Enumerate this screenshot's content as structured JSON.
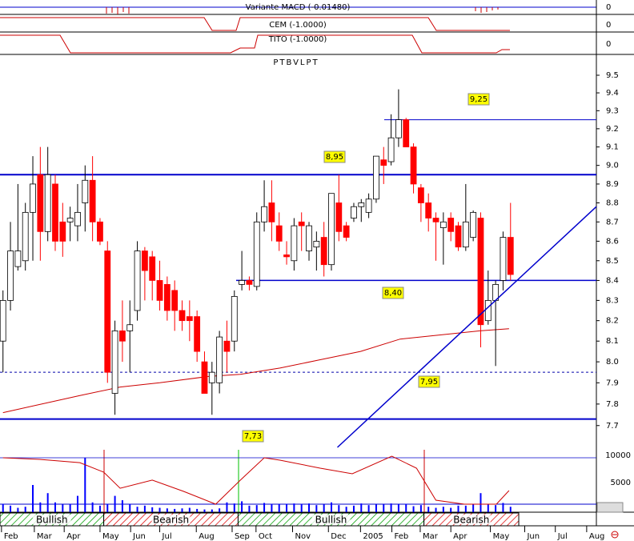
{
  "top_panels": [
    {
      "label": "Variante MACD (-0.01480)",
      "axis_label": "0"
    },
    {
      "label": "CEM (-1.0000)",
      "axis_label": "0"
    },
    {
      "label": "TITO (-1.0000)",
      "axis_label": "0"
    }
  ],
  "chart_data": {
    "type": "candlestick",
    "title": "PTBVLPT",
    "x": [
      0,
      1,
      2,
      3,
      4,
      5,
      6,
      7,
      8,
      9,
      10,
      11,
      12,
      13,
      14,
      15,
      16,
      17,
      18,
      19,
      20,
      21,
      22,
      23,
      24,
      25,
      26,
      27,
      28,
      29,
      30,
      31,
      32,
      33,
      34,
      35,
      36,
      37,
      38,
      39,
      40,
      41,
      42,
      43,
      44,
      45,
      46,
      47,
      48,
      49,
      50,
      51,
      52,
      53,
      54,
      55,
      56,
      57,
      58,
      59,
      60,
      61,
      62,
      63,
      64,
      65,
      66,
      67,
      68
    ],
    "open": [
      8.1,
      8.3,
      8.47,
      8.5,
      8.75,
      8.95,
      8.65,
      8.9,
      8.7,
      8.7,
      8.68,
      8.8,
      8.92,
      8.7,
      8.55,
      7.85,
      8.15,
      8.15,
      8.25,
      8.55,
      8.52,
      8.4,
      8.38,
      8.35,
      8.25,
      8.22,
      8.22,
      8.0,
      7.9,
      7.9,
      8.1,
      8.1,
      8.38,
      8.4,
      8.37,
      8.7,
      8.8,
      8.68,
      8.53,
      8.5,
      8.7,
      8.55,
      8.57,
      8.62,
      8.48,
      8.8,
      8.68,
      8.72,
      8.78,
      8.75,
      8.82,
      9.03,
      9.02,
      9.15,
      9.25,
      9.1,
      8.88,
      8.8,
      8.72,
      8.67,
      8.72,
      8.68,
      8.57,
      8.62,
      8.72,
      8.2,
      8.3,
      8.4,
      8.62
    ],
    "high": [
      8.35,
      8.7,
      8.9,
      8.8,
      9.05,
      9.1,
      9.1,
      8.95,
      8.8,
      8.78,
      8.9,
      9.0,
      9.05,
      8.72,
      8.6,
      8.2,
      8.3,
      8.3,
      8.6,
      8.57,
      8.55,
      8.5,
      8.42,
      8.4,
      8.3,
      8.3,
      8.25,
      8.05,
      8.0,
      8.15,
      8.2,
      8.35,
      8.55,
      8.42,
      8.75,
      8.92,
      8.92,
      8.75,
      8.6,
      8.72,
      8.75,
      8.7,
      8.65,
      8.7,
      8.85,
      8.95,
      8.7,
      8.8,
      8.82,
      8.85,
      9.05,
      9.1,
      9.28,
      9.42,
      9.26,
      9.12,
      8.9,
      8.85,
      8.75,
      8.75,
      8.75,
      8.7,
      8.9,
      8.76,
      8.75,
      8.45,
      8.4,
      8.65,
      8.8
    ],
    "low": [
      7.95,
      8.25,
      8.45,
      8.45,
      8.5,
      8.5,
      8.6,
      8.55,
      8.52,
      8.6,
      8.6,
      8.65,
      8.6,
      8.58,
      7.9,
      7.75,
      8.0,
      7.95,
      8.2,
      8.3,
      8.3,
      8.25,
      8.2,
      8.15,
      8.15,
      8.1,
      8.0,
      7.85,
      7.75,
      7.85,
      7.95,
      8.05,
      8.35,
      8.35,
      8.35,
      8.65,
      8.6,
      8.55,
      8.48,
      8.45,
      8.55,
      8.5,
      8.45,
      8.42,
      8.45,
      8.6,
      8.6,
      8.7,
      8.7,
      8.72,
      8.8,
      8.9,
      9.0,
      9.1,
      9.1,
      8.85,
      8.7,
      8.65,
      8.5,
      8.48,
      8.6,
      8.55,
      8.55,
      8.6,
      8.07,
      8.18,
      7.98,
      8.35,
      8.4
    ],
    "close": [
      8.3,
      8.55,
      8.55,
      8.75,
      8.9,
      8.65,
      8.95,
      8.6,
      8.6,
      8.72,
      8.75,
      8.92,
      8.7,
      8.6,
      7.95,
      8.15,
      8.1,
      8.18,
      8.55,
      8.45,
      8.4,
      8.3,
      8.25,
      8.25,
      8.2,
      8.2,
      8.05,
      7.85,
      7.95,
      8.12,
      8.05,
      8.32,
      8.4,
      8.38,
      8.7,
      8.78,
      8.7,
      8.6,
      8.52,
      8.68,
      8.68,
      8.68,
      8.6,
      8.48,
      8.85,
      8.65,
      8.62,
      8.78,
      8.8,
      8.82,
      9.05,
      9.0,
      9.15,
      9.25,
      9.1,
      8.9,
      8.8,
      8.72,
      8.7,
      8.7,
      8.65,
      8.57,
      8.7,
      8.75,
      8.18,
      8.3,
      8.38,
      8.62,
      8.43
    ],
    "up_color": "#ffffff",
    "down_color": "#ff0000",
    "log_scale": true,
    "ylim": [
      7.6,
      9.61
    ],
    "yticks": [
      7.7,
      7.8,
      7.9,
      {
        "value": 8,
        "label": "8.0"
      },
      8.1,
      8.2,
      8.3,
      8.4,
      8.5,
      8.6,
      8.7,
      8.8,
      8.9,
      {
        "value": 9,
        "label": "9.0"
      },
      9.1,
      9.2,
      9.3,
      9.4,
      9.5
    ],
    "xlim": [
      -0.4,
      79.5
    ],
    "xticks": [
      {
        "value": -0.2,
        "label": "Feb"
      },
      {
        "value": 4.2,
        "label": "Mar"
      },
      {
        "value": 8.2,
        "label": "Apr"
      },
      {
        "value": 13.0,
        "label": "May"
      },
      {
        "value": 17.1,
        "label": "Jun"
      },
      {
        "value": 21.0,
        "label": "Jul"
      },
      {
        "value": 25.9,
        "label": "Aug"
      },
      {
        "value": 30.7,
        "label": "Sep"
      },
      {
        "value": 33.9,
        "label": "Oct"
      },
      {
        "value": 38.8,
        "label": "Nov"
      },
      {
        "value": 43.6,
        "label": "Dec"
      },
      {
        "value": 47.9,
        "label": "2005"
      },
      {
        "value": 52.1,
        "label": "Feb"
      },
      {
        "value": 55.9,
        "label": "Mar"
      },
      {
        "value": 60.0,
        "label": "Apr"
      },
      {
        "value": 65.3,
        "label": "May"
      },
      {
        "value": 69.9,
        "label": "Jun"
      },
      {
        "value": 74.0,
        "label": "Jul"
      },
      {
        "value": 78.2,
        "label": "Aug"
      }
    ],
    "moving_average": {
      "color": "#cc0000",
      "x": [
        0,
        10.3,
        15.7,
        21.0,
        27.5,
        31.8,
        37.1,
        42.5,
        47.9,
        53.2,
        58.6,
        63.9,
        67.8
      ],
      "values": [
        7.76,
        7.84,
        7.88,
        7.9,
        7.93,
        7.94,
        7.97,
        8.01,
        8.05,
        8.11,
        8.13,
        8.15,
        8.16
      ]
    },
    "levels": [
      {
        "value": 8.95,
        "label": "8,95"
      },
      {
        "value": 9.25,
        "label": "9,25"
      },
      {
        "value": 8.4,
        "label": "8,40"
      },
      {
        "value": 7.95,
        "label": "7,95"
      },
      {
        "value": 7.73,
        "label": "7,73"
      }
    ],
    "level_color": "#0000cc",
    "trendline": {
      "color": "#0000cc",
      "x": [
        44.8,
        79.5
      ],
      "values": [
        7.6,
        8.78
      ]
    },
    "volume": {
      "color": "#0000ff",
      "values": [
        1500,
        1200,
        800,
        1000,
        5000,
        1800,
        3500,
        1800,
        1400,
        1500,
        3000,
        10000,
        1800,
        1200,
        1500,
        3000,
        2200,
        1500,
        1000,
        1200,
        900,
        800,
        700,
        600,
        700,
        800,
        600,
        500,
        500,
        700,
        1800,
        1600,
        2000,
        1200,
        1300,
        1700,
        1500,
        1500,
        1500,
        1600,
        1500,
        1600,
        1300,
        1400,
        1800,
        1300,
        1000,
        1200,
        1600,
        1300,
        1400,
        1400,
        1600,
        1500,
        1500,
        1100,
        1300,
        1000,
        800,
        1000,
        800,
        1200,
        1200,
        1500,
        3500,
        1500,
        1300,
        1700,
        1000
      ]
    },
    "oscillator": {
      "color": "#cc0000",
      "x": [
        0,
        4.9,
        10.3,
        13.5,
        15.7,
        20.0,
        24.2,
        28.5,
        31.8,
        35.0,
        37.1,
        42.5,
        46.8,
        52.1,
        55.4,
        58.0,
        61.8,
        66.1,
        67.8
      ],
      "values": [
        10000,
        9700,
        9100,
        7350,
        4400,
        5900,
        3820,
        1470,
        5880,
        10000,
        9560,
        8090,
        7060,
        10290,
        8090,
        2210,
        1470,
        1470,
        3970
      ]
    },
    "y2lim": [
      0,
      12500
    ],
    "y2ticks": [
      5000,
      10000
    ],
    "signals": [
      {
        "label": "Bullish",
        "start": -0.4,
        "end": 13.5,
        "color": "#00a000"
      },
      {
        "label": "Bearish",
        "start": 13.5,
        "end": 31.5,
        "color": "#e00000"
      },
      {
        "label": "Bullish",
        "start": 31.5,
        "end": 56.4,
        "color": "#00a000"
      },
      {
        "label": "Bearish",
        "start": 56.4,
        "end": 69.1,
        "color": "#e00000"
      }
    ]
  }
}
